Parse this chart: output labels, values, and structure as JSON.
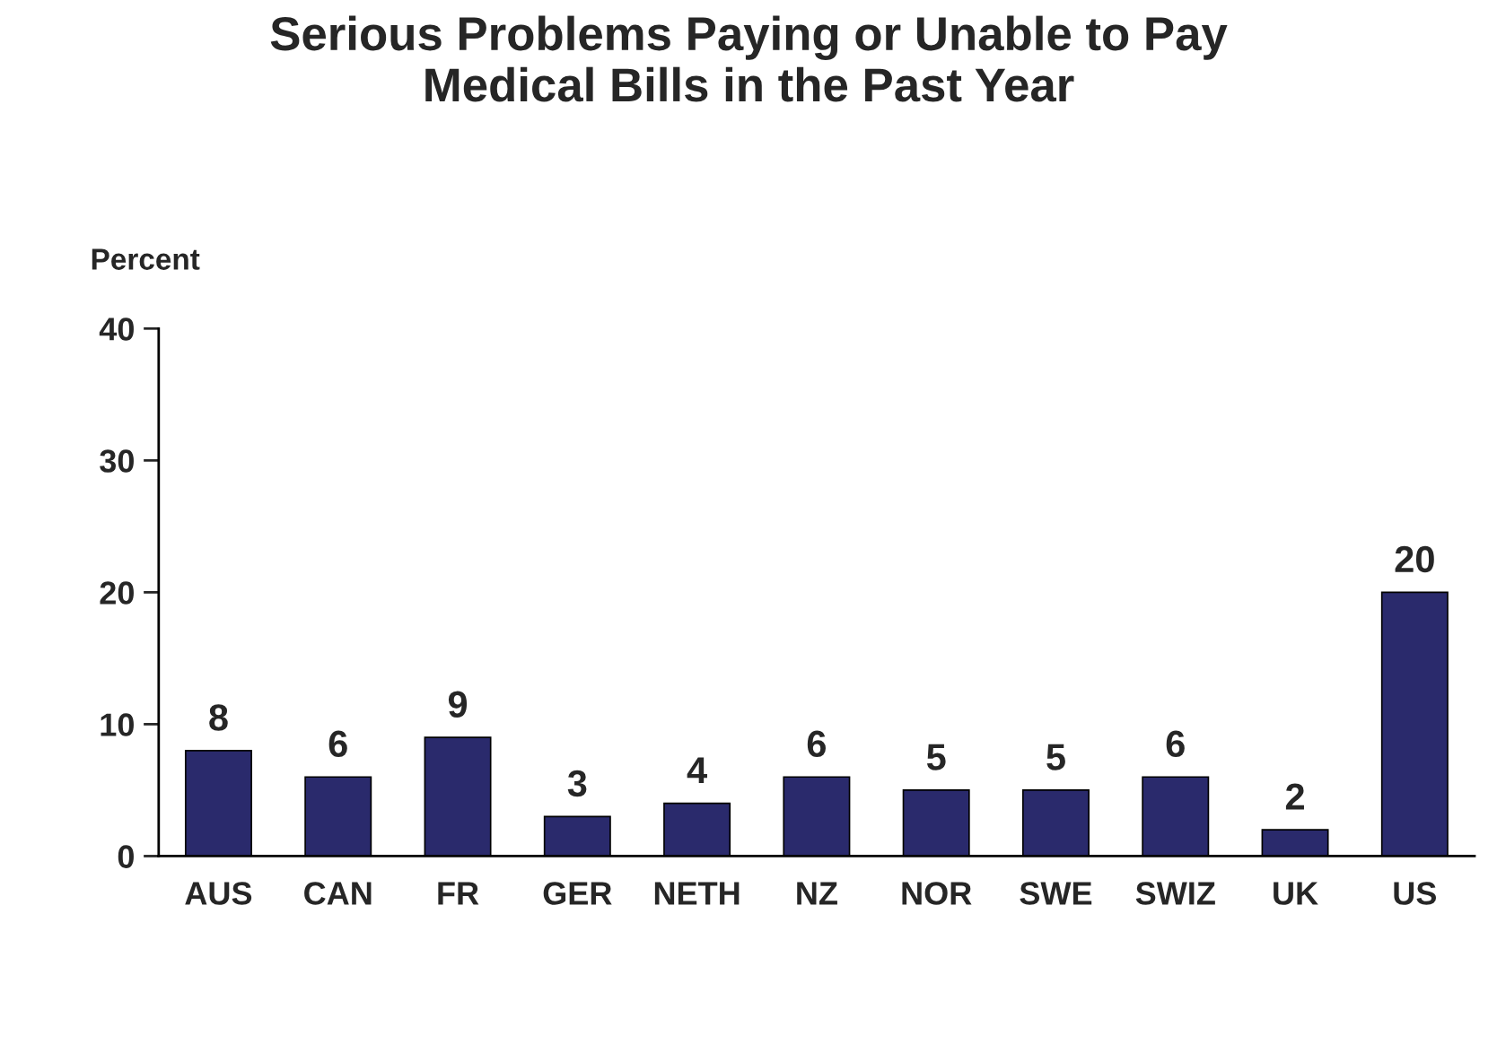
{
  "chart_data": {
    "type": "bar",
    "title": "Serious Problems Paying or Unable to Pay\nMedical Bills in the Past Year",
    "ylabel": "Percent",
    "categories": [
      "AUS",
      "CAN",
      "FR",
      "GER",
      "NETH",
      "NZ",
      "NOR",
      "SWE",
      "SWIZ",
      "UK",
      "US"
    ],
    "values": [
      8,
      6,
      9,
      3,
      4,
      6,
      5,
      5,
      6,
      2,
      20
    ],
    "color": "#2a2a6c",
    "ylim": [
      0,
      40
    ],
    "yticks": [
      0,
      10,
      20,
      30,
      40
    ],
    "grid": false,
    "data_labels": true
  }
}
